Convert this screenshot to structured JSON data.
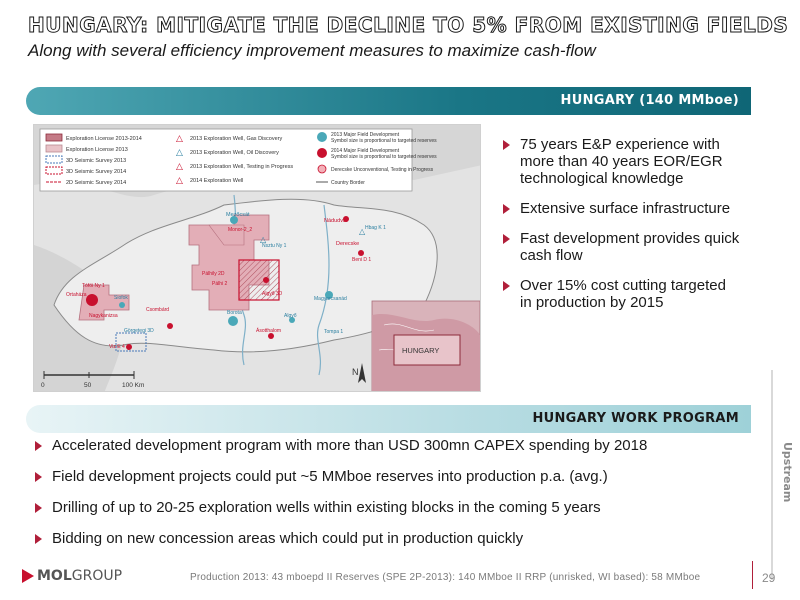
{
  "header": {
    "title": "HUNGARY: MITIGATE THE DECLINE TO 5% FROM EXISTING FIELDS",
    "subtitle": "Along with several efficiency improvement measures to maximize cash-flow"
  },
  "section1": {
    "label": "HUNGARY (140 MMboe)",
    "bullets": [
      "75 years E&P experience with more than 40 years EOR/EGR technological knowledge",
      "Extensive surface infrastructure",
      "Fast development provides quick cash flow",
      "Over 15% cost cutting targeted in production by 2015"
    ]
  },
  "map": {
    "legend": [
      "Exploration License 2013-2014",
      "Exploration License 2013",
      "3D Seismic Survey 2013",
      "3D Seismic Survey 2014",
      "2D Seismic Survey 2014",
      "2013 Exploration Well, Gas Discovery",
      "2013 Exploration Well, Oil Discovery",
      "2013 Exploration Well, Testing in Progress",
      "2014 Exploration Well",
      "2013 Major Field Development",
      "Symbol size is proportional to targeted reserves",
      "2014 Major Field Development",
      "Symbol size is proportional to targeted reserves",
      "Derecske Unconventional, Testing in Progress",
      "Country Border"
    ],
    "places": [
      "Mezőcsát",
      "Monor-2_2",
      "Nsztu Ny 1",
      "Nádudvar",
      "Hbag K 1",
      "Derecske",
      "Beni D 1",
      "Pálhily 2D",
      "Pálhi 2",
      "Algyő 3D",
      "Tóföi Ny 1",
      "Ortaháza",
      "Siofok",
      "Nagykanizsa",
      "Csombárd",
      "Görgetegi 3D",
      "Viz E 4",
      "Ásotthalom",
      "Algyő",
      "Borota",
      "Magyarcsanád",
      "Tompa 1"
    ],
    "scale": [
      "0",
      "50",
      "100 Km"
    ],
    "north": "N",
    "inset_label": "HUNGARY"
  },
  "section2": {
    "label": "HUNGARY WORK PROGRAM",
    "bullets": [
      "Accelerated development program with more than USD 300mn CAPEX spending by 2018",
      "Field development projects could put ~5 MMboe reserves into production p.a. (avg.)",
      "Drilling of up to 20-25 exploration wells within existing blocks in the coming 5 years",
      "Bidding on new concession areas which could put in production quickly"
    ]
  },
  "side_tab": "Upstream",
  "footer": {
    "logo_mol": "MOL",
    "logo_group": "GROUP",
    "text": "Production 2013: 43 mboepd II  Reserves (SPE 2P-2013): 140 MMboe II RRP (unrisked, WI based): 58 MMboe",
    "page": "29"
  },
  "colors": {
    "accent": "#b01f3a",
    "banner_dark": "#1a7686",
    "banner_light": "#b9dde3"
  }
}
